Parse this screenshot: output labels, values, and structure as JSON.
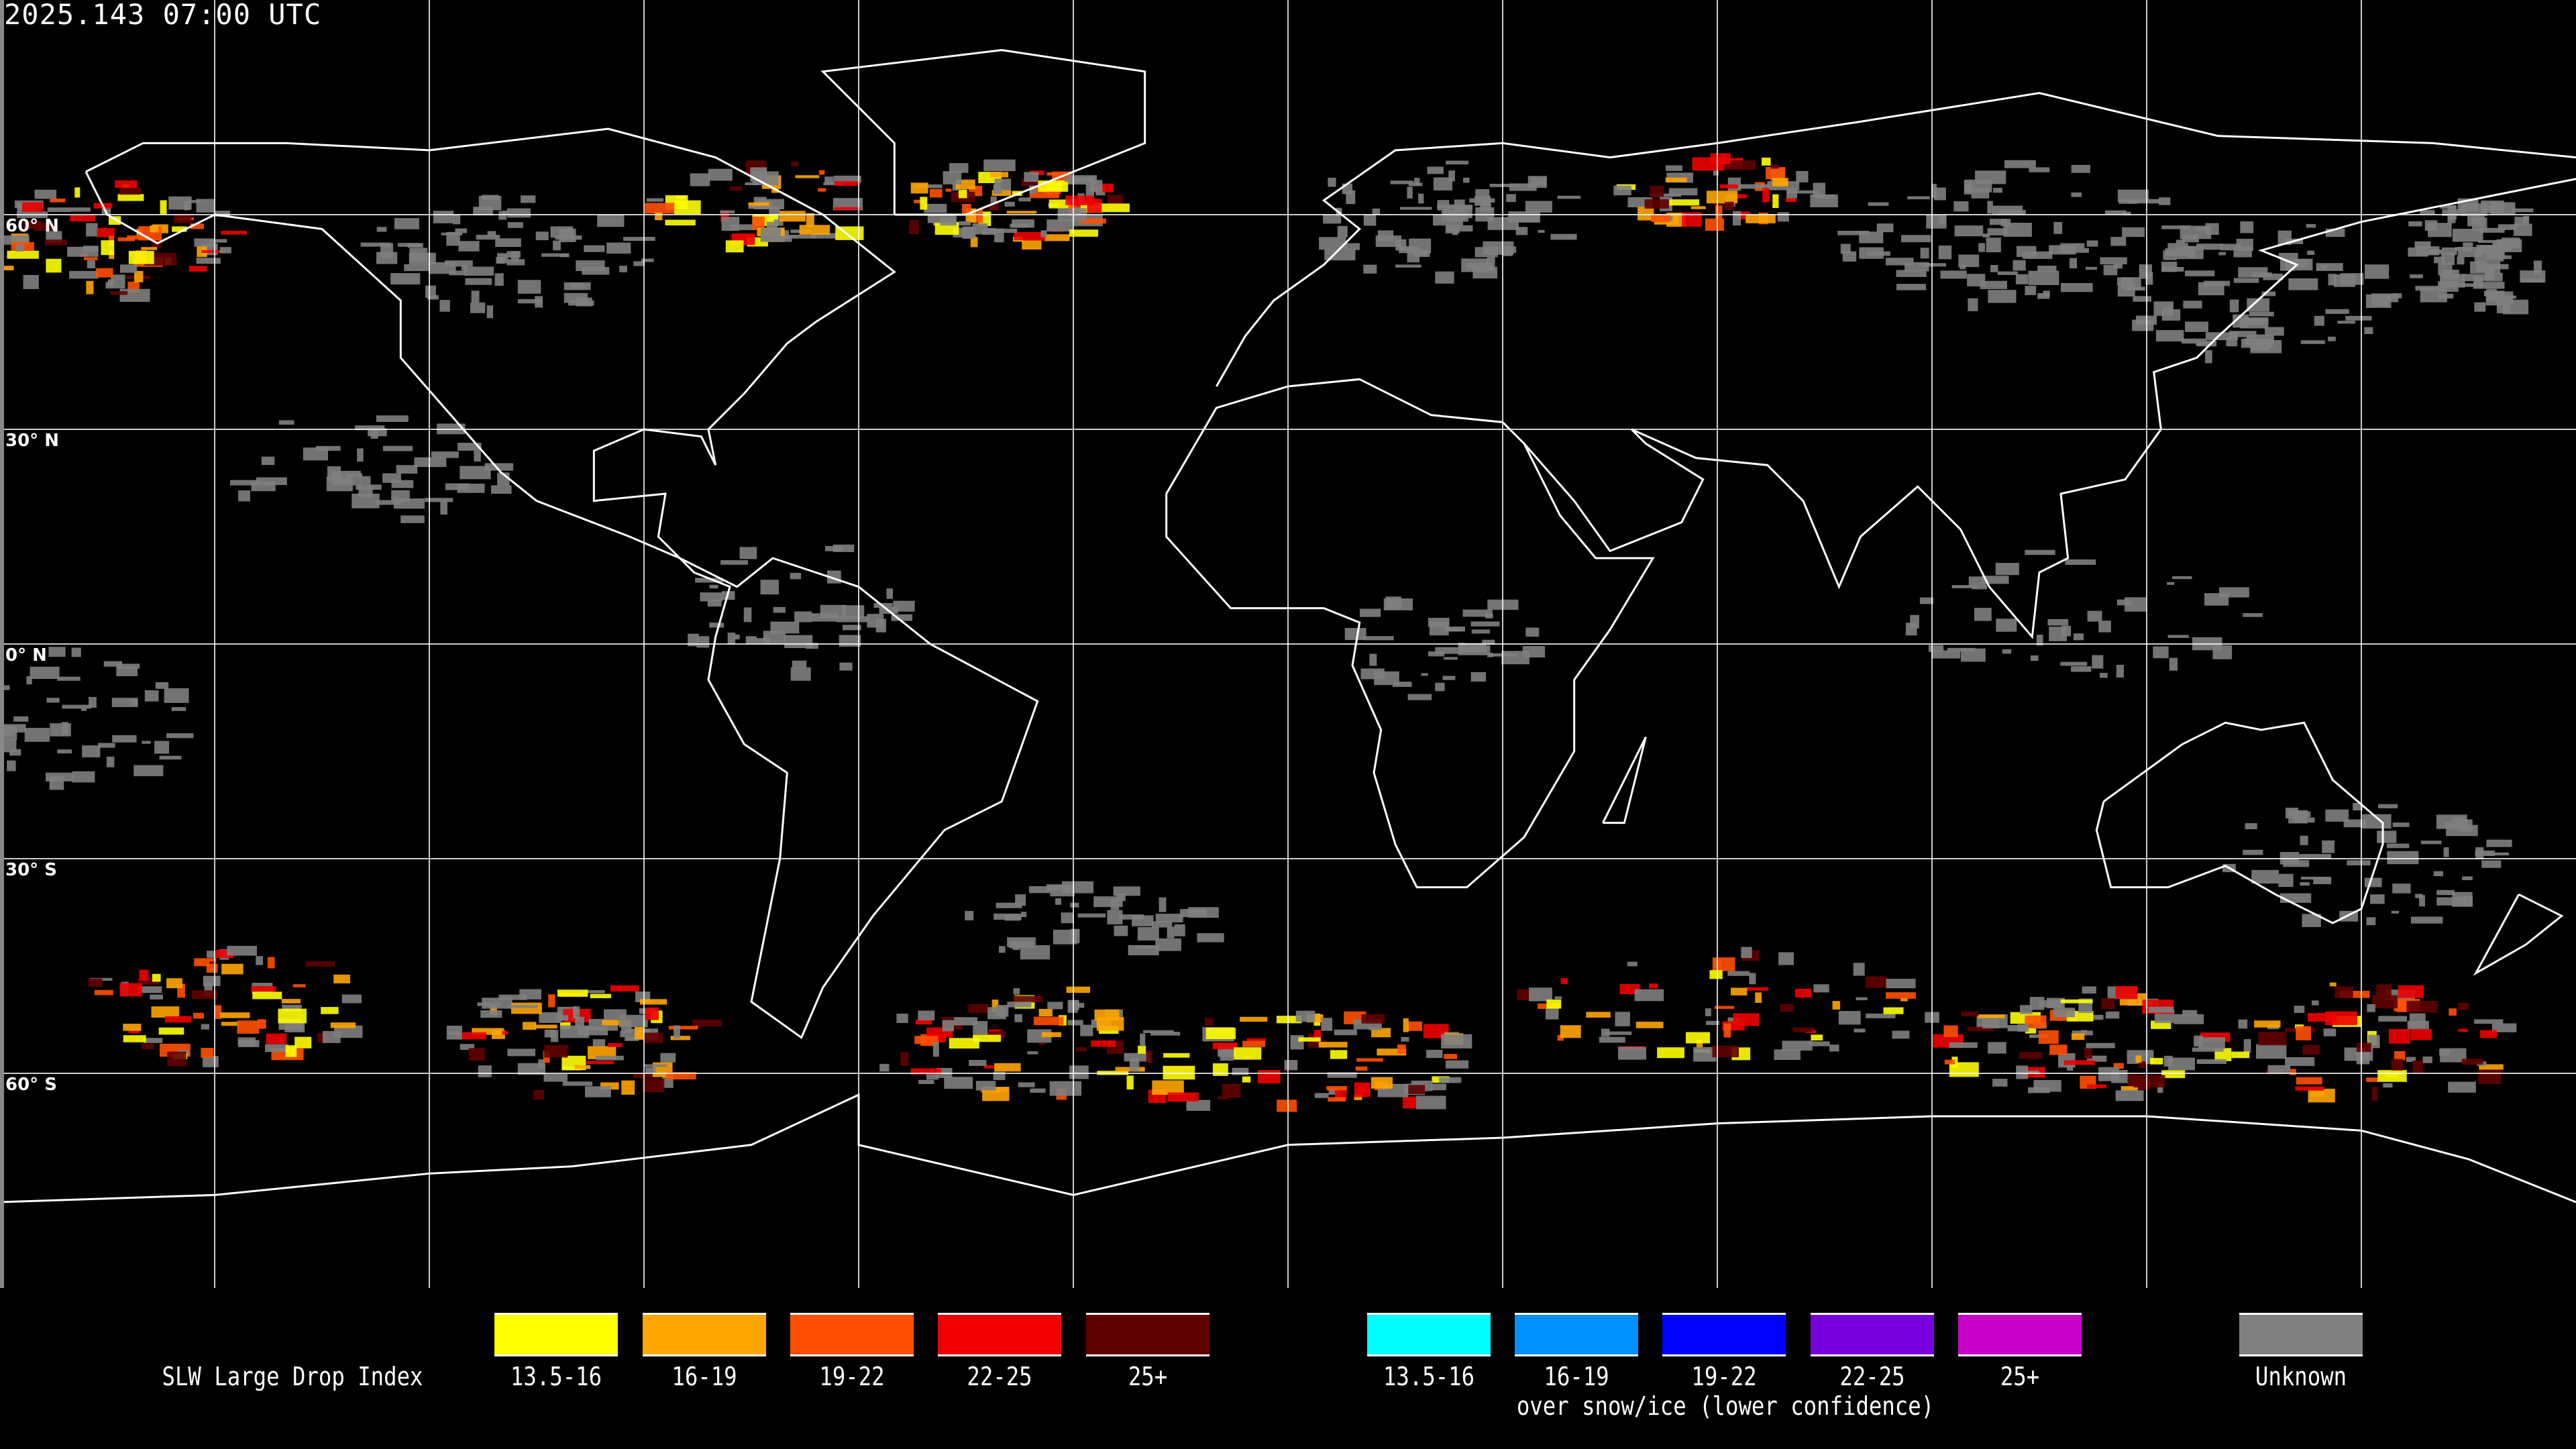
{
  "title": "2025.143 07:00 UTC",
  "map": {
    "projection": "equirectangular",
    "grid_spacing_deg": 30,
    "lat_labels": [
      "60° N",
      "30° N",
      "0° N",
      "30° S",
      "60° S"
    ],
    "background": "#000000",
    "coastline_color": "#ffffff",
    "gridline_color": "#ffffff"
  },
  "legend": {
    "title": "SLW Large Drop Index",
    "classes": [
      {
        "label": "13.5-16",
        "color": "#ffff00"
      },
      {
        "label": "16-19",
        "color": "#ffa500"
      },
      {
        "label": "19-22",
        "color": "#ff5000"
      },
      {
        "label": "22-25",
        "color": "#ee0000"
      },
      {
        "label": "25+",
        "color": "#600000"
      }
    ],
    "snow_classes": [
      {
        "label": "13.5-16",
        "color": "#00ffff"
      },
      {
        "label": "16-19",
        "color": "#0090ff"
      },
      {
        "label": "19-22",
        "color": "#0000ff"
      },
      {
        "label": "22-25",
        "color": "#7800dc"
      },
      {
        "label": "25+",
        "color": "#c800c8"
      }
    ],
    "snow_note": "over snow/ice (lower confidence)",
    "unknown": {
      "label": "Unknown",
      "color": "#808080"
    }
  }
}
